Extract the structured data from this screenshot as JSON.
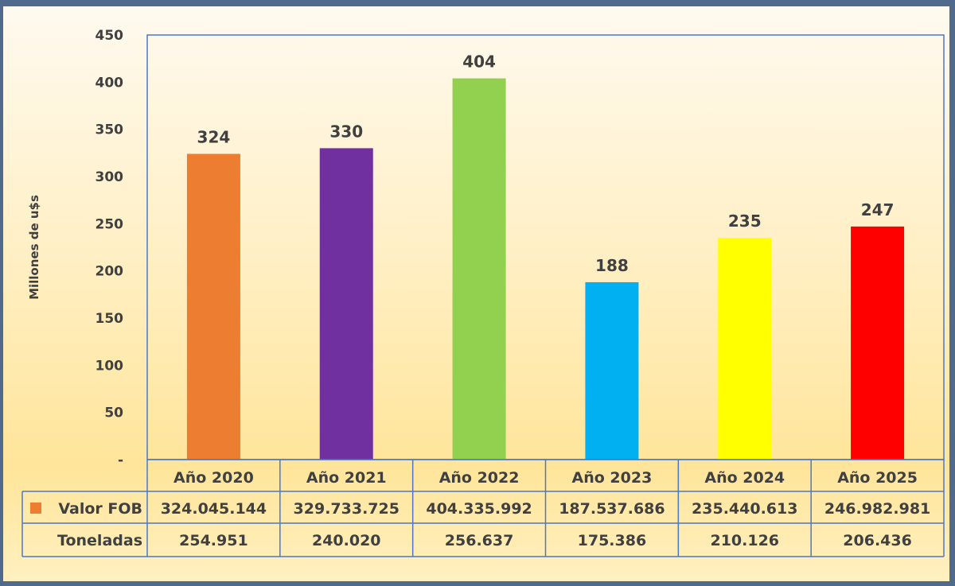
{
  "chart_data": {
    "type": "bar",
    "title": "",
    "ylabel": "Millones de u$s",
    "xlabel": "",
    "ylim": [
      0,
      450
    ],
    "yticks": [
      0,
      50,
      100,
      150,
      200,
      250,
      300,
      350,
      400,
      450
    ],
    "ytick_labels": [
      "-",
      "50",
      "100",
      "150",
      "200",
      "250",
      "300",
      "350",
      "400",
      "450"
    ],
    "categories": [
      "Año 2020",
      "Año 2021",
      "Año 2022",
      "Año 2023",
      "Año 2024",
      "Año 2025"
    ],
    "values": [
      324,
      330,
      404,
      188,
      235,
      247
    ],
    "data_labels": [
      "324",
      "330",
      "404",
      "188",
      "235",
      "247"
    ],
    "colors": [
      "#ed7d31",
      "#7030a0",
      "#92d050",
      "#00b0f0",
      "#ffff00",
      "#ff0000"
    ],
    "legend_placement": "data-table",
    "table": {
      "rows": [
        {
          "label": "Valor FOB",
          "legend_color": "#ed7d31",
          "values": [
            "324.045.144",
            "329.733.725",
            "404.335.992",
            "187.537.686",
            "235.440.613",
            "246.982.981"
          ]
        },
        {
          "label": "Toneladas",
          "values": [
            "254.951",
            "240.020",
            "256.637",
            "175.386",
            "210.126",
            "206.436"
          ]
        }
      ]
    }
  }
}
